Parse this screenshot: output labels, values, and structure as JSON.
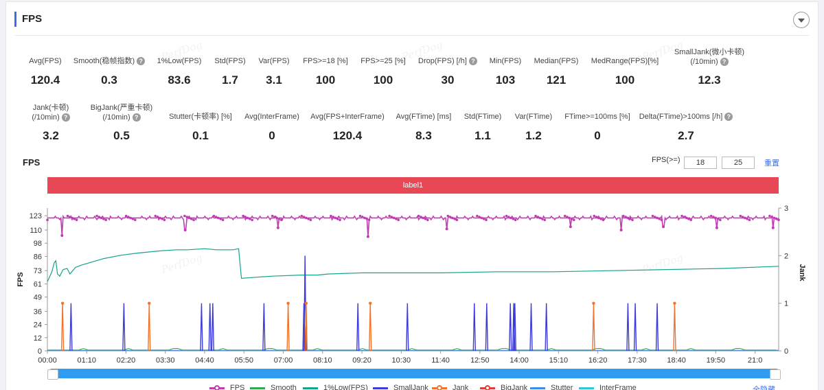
{
  "card": {
    "title": "FPS"
  },
  "metrics_row1": [
    {
      "label": "Avg(FPS)",
      "value": "120.4",
      "help": false
    },
    {
      "label": "Smooth(稳帧指数)",
      "value": "0.3",
      "help": true
    },
    {
      "label": "1%Low(FPS)",
      "value": "83.6",
      "help": false
    },
    {
      "label": "Std(FPS)",
      "value": "1.7",
      "help": false
    },
    {
      "label": "Var(FPS)",
      "value": "3.1",
      "help": false
    },
    {
      "label": "FPS>=18 [%]",
      "value": "100",
      "help": false
    },
    {
      "label": "FPS>=25 [%]",
      "value": "100",
      "help": false
    },
    {
      "label": "Drop(FPS) [/h]",
      "value": "30",
      "help": true
    },
    {
      "label": "Min(FPS)",
      "value": "103",
      "help": false
    },
    {
      "label": "Median(FPS)",
      "value": "121",
      "help": false
    },
    {
      "label": "MedRange(FPS)[%]",
      "value": "100",
      "help": false
    },
    {
      "label": "SmallJank(微小卡顿)",
      "label2": "(/10min)",
      "value": "12.3",
      "help": true
    }
  ],
  "metrics_row2": [
    {
      "label": "Jank(卡顿)",
      "label2": "(/10min)",
      "value": "3.2",
      "help": true
    },
    {
      "label": "BigJank(严重卡顿)",
      "label2": "(/10min)",
      "value": "0.5",
      "help": true
    },
    {
      "label": "Stutter(卡顿率) [%]",
      "value": "0.1",
      "help": false
    },
    {
      "label": "Avg(InterFrame)",
      "value": "0",
      "help": false
    },
    {
      "label": "Avg(FPS+InterFrame)",
      "value": "120.4",
      "help": false
    },
    {
      "label": "Avg(FTime) [ms]",
      "value": "8.3",
      "help": false
    },
    {
      "label": "Std(FTime)",
      "value": "1.1",
      "help": false
    },
    {
      "label": "Var(FTime)",
      "value": "1.2",
      "help": false
    },
    {
      "label": "FTime>=100ms [%]",
      "value": "0",
      "help": false
    },
    {
      "label": "Delta(FTime)>100ms [/h]",
      "value": "2.7",
      "help": true
    }
  ],
  "help_glyph": "?",
  "watermark_text": "PerfDog",
  "chart_title": "FPS",
  "filter": {
    "label": "FPS(>=)",
    "value1": "18",
    "value2": "25",
    "reset": "重置"
  },
  "label_band": "label1",
  "legend": [
    {
      "name": "FPS",
      "color": "#c23ab4",
      "marker": true
    },
    {
      "name": "Smooth",
      "color": "#2fa84f",
      "marker": false
    },
    {
      "name": "1%Low(FPS)",
      "color": "#14a38b",
      "marker": false
    },
    {
      "name": "SmallJank",
      "color": "#3c3cd6",
      "marker": false
    },
    {
      "name": "Jank",
      "color": "#f2732c",
      "marker": true
    },
    {
      "name": "BigJank",
      "color": "#e23b35",
      "marker": true
    },
    {
      "name": "Stutter",
      "color": "#3b8de8",
      "marker": false
    },
    {
      "name": "InterFrame",
      "color": "#2fc6d6",
      "marker": false
    }
  ],
  "hide_all": "全隐藏",
  "chart_data": {
    "type": "line",
    "xlabel": "",
    "ylabel": "FPS",
    "y2label": "Jank",
    "ylim": [
      0,
      130
    ],
    "y2lim": [
      0,
      3
    ],
    "yticks": [
      0,
      12,
      24,
      36,
      49,
      61,
      73,
      86,
      98,
      110,
      123
    ],
    "y2ticks": [
      0,
      1,
      2,
      3
    ],
    "xticks": [
      "00:00",
      "01:10",
      "02:20",
      "03:30",
      "04:40",
      "05:50",
      "07:00",
      "08:10",
      "09:20",
      "10:30",
      "11:40",
      "12:50",
      "14:00",
      "15:10",
      "16:20",
      "17:30",
      "18:40",
      "19:50",
      "21:0"
    ],
    "x_range_seconds": [
      0,
      1300
    ],
    "fps": {
      "baseline": 121,
      "dips": [
        [
          26,
          105
        ],
        [
          245,
          110
        ],
        [
          410,
          112
        ],
        [
          570,
          104
        ],
        [
          710,
          111
        ],
        [
          930,
          113
        ],
        [
          1020,
          110
        ],
        [
          1095,
          113
        ],
        [
          1190,
          112
        ],
        [
          1290,
          112
        ]
      ]
    },
    "low1_fps": [
      [
        0,
        63
      ],
      [
        8,
        72
      ],
      [
        12,
        80
      ],
      [
        15,
        82
      ],
      [
        18,
        70
      ],
      [
        22,
        68
      ],
      [
        28,
        74
      ],
      [
        35,
        75
      ],
      [
        40,
        70
      ],
      [
        50,
        76
      ],
      [
        60,
        78
      ],
      [
        80,
        81
      ],
      [
        100,
        84
      ],
      [
        130,
        87
      ],
      [
        160,
        89
      ],
      [
        180,
        90
      ],
      [
        200,
        91
      ],
      [
        230,
        92
      ],
      [
        250,
        92
      ],
      [
        280,
        93
      ],
      [
        300,
        92
      ],
      [
        330,
        92
      ],
      [
        340,
        93
      ],
      [
        345,
        66
      ],
      [
        370,
        67
      ],
      [
        400,
        68
      ],
      [
        450,
        69
      ],
      [
        480,
        69
      ],
      [
        500,
        70
      ],
      [
        560,
        71
      ],
      [
        600,
        71
      ],
      [
        700,
        71
      ],
      [
        800,
        72
      ],
      [
        900,
        72
      ],
      [
        1000,
        73
      ],
      [
        1100,
        74
      ],
      [
        1200,
        75
      ],
      [
        1300,
        77
      ]
    ],
    "jank_y2": [
      [
        27,
        1.0
      ],
      [
        181,
        1.0
      ],
      [
        428,
        1.0
      ],
      [
        460,
        1.0
      ],
      [
        574,
        1.0
      ],
      [
        971,
        1.0
      ],
      [
        1115,
        1.0
      ]
    ],
    "smalljank_y2": [
      [
        42,
        1.0
      ],
      [
        136,
        1.0
      ],
      [
        274,
        1.0
      ],
      [
        289,
        1.0
      ],
      [
        294,
        1.0
      ],
      [
        385,
        1.0
      ],
      [
        456,
        1.0
      ],
      [
        458,
        2.0
      ],
      [
        552,
        1.0
      ],
      [
        640,
        1.0
      ],
      [
        759,
        1.0
      ],
      [
        781,
        1.0
      ],
      [
        829,
        1.0
      ],
      [
        831,
        1.0
      ],
      [
        823,
        1.0
      ],
      [
        860,
        1.0
      ],
      [
        887,
        1.0
      ],
      [
        1032,
        1.0
      ],
      [
        1045,
        1.0
      ],
      [
        1084,
        1.0
      ]
    ],
    "grid": false,
    "legend_position": "bottom"
  }
}
